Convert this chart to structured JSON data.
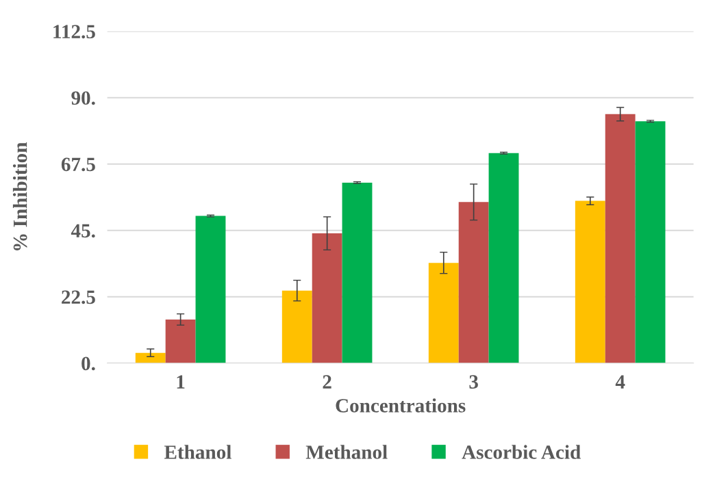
{
  "chart_data": {
    "type": "bar",
    "xlabel": "Concentrations",
    "ylabel": "% Inhibition",
    "categories": [
      "1",
      "2",
      "3",
      "4"
    ],
    "series": [
      {
        "name": "Ethanol",
        "color": "#ffc000",
        "values": [
          3.5,
          24.6,
          34.0,
          55.0
        ],
        "errors": [
          1.3,
          3.5,
          3.6,
          1.3
        ]
      },
      {
        "name": "Methanol",
        "color": "#c0504d",
        "values": [
          14.8,
          44.0,
          54.6,
          84.4
        ],
        "errors": [
          1.9,
          5.6,
          6.1,
          2.3
        ]
      },
      {
        "name": "Ascorbic Acid",
        "color": "#00b050",
        "values": [
          49.9,
          61.2,
          71.2,
          82.0
        ],
        "errors": [
          0.3,
          0.3,
          0.3,
          0.3
        ]
      }
    ],
    "ylim": [
      0,
      112.5
    ],
    "yticks": [
      {
        "value": 0,
        "label": "0."
      },
      22.5,
      {
        "value": 45,
        "label": "45."
      },
      67.5,
      {
        "value": 90,
        "label": "90."
      },
      112.5
    ],
    "grid": "y",
    "legend": "bottom"
  }
}
